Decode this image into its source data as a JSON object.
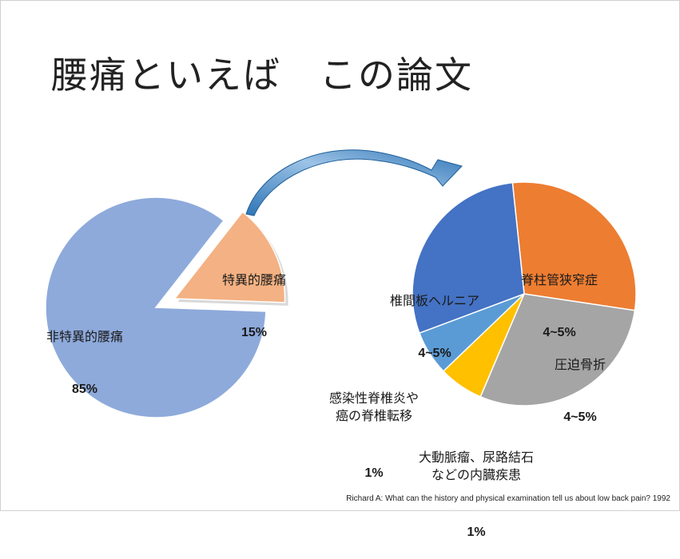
{
  "title": "腰痛といえば　この論文",
  "citation": "Richard A: What can the history and physical examination tell us about low back pain? 1992",
  "chart_data": [
    {
      "type": "pie",
      "title": "",
      "slices": [
        {
          "label": "非特異的腰痛",
          "value_text": "85%",
          "value": 85,
          "color": "#8eaadb",
          "exploded": false
        },
        {
          "label": "特異的腰痛",
          "value_text": "15%",
          "value": 15,
          "color": "#f4b183",
          "exploded": true
        }
      ]
    },
    {
      "type": "pie",
      "title": "",
      "slices": [
        {
          "label": "脊柱管狭窄症",
          "value_text": "4~5%",
          "value": 4.5,
          "color": "#ed7d31"
        },
        {
          "label": "圧迫骨折",
          "value_text": "4~5%",
          "value": 4.5,
          "color": "#a5a5a5"
        },
        {
          "label": "大動脈瘤、尿路結石\nなどの内臓疾患",
          "value_text": "1%",
          "value": 1,
          "color": "#ffc000"
        },
        {
          "label": "感染性脊椎炎や\n癌の脊椎転移",
          "value_text": "1%",
          "value": 1,
          "color": "#5b9bd5"
        },
        {
          "label": "椎間板ヘルニア",
          "value_text": "4~5%",
          "value": 4.5,
          "color": "#4472c4"
        }
      ]
    }
  ],
  "colors": {
    "arrow_fill": "#2e75b6",
    "arrow_light": "#9dc3e6"
  }
}
